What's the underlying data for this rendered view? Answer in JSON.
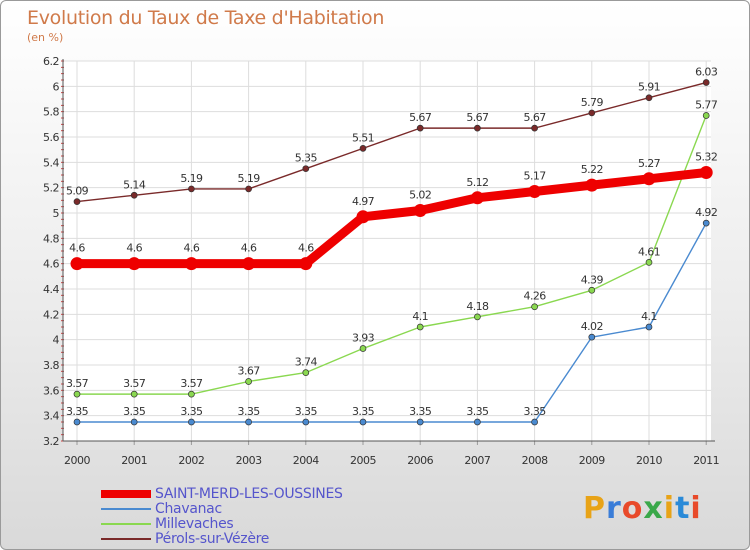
{
  "title": "Evolution du Taux de Taxe d'Habitation",
  "subtitle": "(en %)",
  "logo": {
    "text": "Proxiti",
    "colors": [
      "#e8a317",
      "#3a7dd8",
      "#e84a2a",
      "#3aa84a",
      "#e8a317",
      "#2a8ad8",
      "#e84a2a"
    ]
  },
  "chart_data": {
    "type": "line",
    "categories": [
      "2000",
      "2001",
      "2002",
      "2003",
      "2004",
      "2005",
      "2006",
      "2007",
      "2008",
      "2009",
      "2010",
      "2011"
    ],
    "ylim": [
      3.2,
      6.2
    ],
    "y_ticks": [
      "3.2",
      "3.4",
      "3.6",
      "3.8",
      "4",
      "4.2",
      "4.4",
      "4.6",
      "4.8",
      "5",
      "5.2",
      "5.4",
      "5.6",
      "5.8",
      "6",
      "6.2"
    ],
    "grid": true,
    "legend_position": "bottom-left",
    "series": [
      {
        "name": "Pérols-sur-Vézère",
        "color": "#7a2a2a",
        "values": [
          5.09,
          5.14,
          5.19,
          5.19,
          5.35,
          5.51,
          5.67,
          5.67,
          5.67,
          5.79,
          5.91,
          6.03
        ],
        "labels": [
          "5.09",
          "5.14",
          "5.19",
          "5.19",
          "5.35",
          "5.51",
          "5.67",
          "5.67",
          "5.67",
          "5.79",
          "5.91",
          "6.03"
        ]
      },
      {
        "name": "Millevaches",
        "color": "#8ad850",
        "values": [
          3.57,
          3.57,
          3.57,
          3.67,
          3.74,
          3.93,
          4.1,
          4.18,
          4.26,
          4.39,
          4.61,
          5.77
        ],
        "labels": [
          "3.57",
          "3.57",
          "3.57",
          "3.67",
          "3.74",
          "3.93",
          "4.1",
          "4.18",
          "4.26",
          "4.39",
          "4.61",
          "5.77"
        ]
      },
      {
        "name": "Chavanac",
        "color": "#4a8ad0",
        "values": [
          3.35,
          3.35,
          3.35,
          3.35,
          3.35,
          3.35,
          3.35,
          3.35,
          3.35,
          4.02,
          4.1,
          4.92
        ],
        "labels": [
          "3.35",
          "3.35",
          "3.35",
          "3.35",
          "3.35",
          "3.35",
          "3.35",
          "3.35",
          "3.35",
          "4.02",
          "4.1",
          "4.92"
        ]
      },
      {
        "name": "SAINT-MERD-LES-OUSSINES",
        "color": "#ee0000",
        "values": [
          4.6,
          4.6,
          4.6,
          4.6,
          4.6,
          4.97,
          5.02,
          5.12,
          5.17,
          5.22,
          5.27,
          5.32
        ],
        "labels": [
          "4.6",
          "4.6",
          "4.6",
          "4.6",
          "4.6",
          "4.97",
          "5.02",
          "5.12",
          "5.17",
          "5.22",
          "5.27",
          "5.32"
        ]
      }
    ],
    "legend": [
      "SAINT-MERD-LES-OUSSINES",
      "Chavanac",
      "Millevaches",
      "Pérols-sur-Vézère"
    ]
  }
}
